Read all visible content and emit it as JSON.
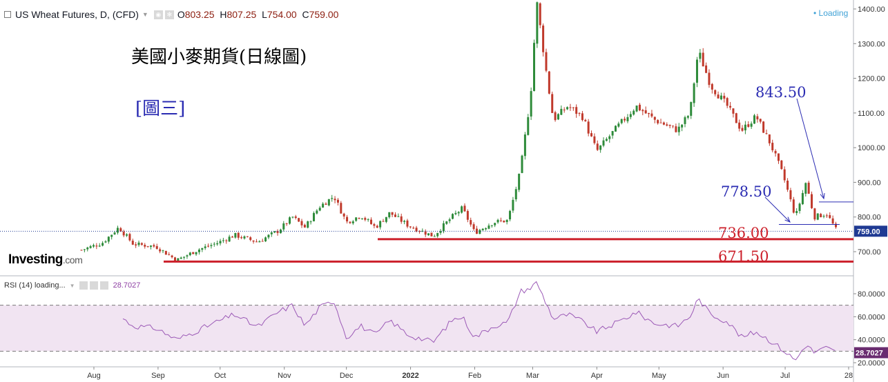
{
  "header": {
    "symbol": "US Wheat Futures, D, (CFD)",
    "open_label": "O",
    "open": "803.25",
    "high_label": "H",
    "high": "807.25",
    "low_label": "L",
    "low": "754.00",
    "close_label": "C",
    "close": "759.00",
    "status": "• Loading"
  },
  "annotations": {
    "title": "美國小麥期貨(日線圖)",
    "figure": "[圖三]",
    "level_843": "843.50",
    "level_778": "778.50",
    "level_736": "736.00",
    "level_671": "671.50"
  },
  "logo": {
    "main": "Investing",
    "suffix": ".com"
  },
  "rsi_header": {
    "label": "RSI (14) loading...",
    "value": "28.7027"
  },
  "price_axis": {
    "ticks": [
      "1400.00",
      "1300.00",
      "1200.00",
      "1100.00",
      "1000.00",
      "900.00",
      "800.00",
      "700.00"
    ],
    "last_price": "759.00"
  },
  "rsi_axis": {
    "ticks": [
      "80.0000",
      "60.0000",
      "40.0000",
      "20.0000"
    ],
    "last_value": "28.7027"
  },
  "time_axis": [
    "Aug",
    "Sep",
    "Oct",
    "Nov",
    "Dec",
    "2022",
    "Feb",
    "Mar",
    "Apr",
    "May",
    "Jun",
    "Jul",
    "28"
  ],
  "colors": {
    "up": "#2e8b3a",
    "down": "#c0392b",
    "support": "#cc1f2a",
    "note_blue": "#2a2bb2",
    "rsi_line": "#9b59b6",
    "rsi_band": "#f1e4f2",
    "last_price_bg": "#1f3a93"
  },
  "chart_data": {
    "type": "candlestick",
    "price_ylim": [
      650,
      1420
    ],
    "rsi_ylim": [
      15,
      92
    ],
    "rsi_bands": [
      30,
      70
    ],
    "support_levels": [
      843.5,
      778.5,
      736.0,
      671.5
    ],
    "last_close": 759.0,
    "keypoints": [
      {
        "x": "2021-07-26",
        "price": 705,
        "rsi": 55
      },
      {
        "x": "2021-08-05",
        "price": 725,
        "rsi": 54
      },
      {
        "x": "2021-08-13",
        "price": 770,
        "rsi": 61
      },
      {
        "x": "2021-08-20",
        "price": 722,
        "rsi": 52
      },
      {
        "x": "2021-08-31",
        "price": 715,
        "rsi": 50
      },
      {
        "x": "2021-09-10",
        "price": 675,
        "rsi": 40
      },
      {
        "x": "2021-09-20",
        "price": 705,
        "rsi": 48
      },
      {
        "x": "2021-09-30",
        "price": 726,
        "rsi": 56
      },
      {
        "x": "2021-10-08",
        "price": 748,
        "rsi": 62
      },
      {
        "x": "2021-10-19",
        "price": 728,
        "rsi": 51
      },
      {
        "x": "2021-10-29",
        "price": 760,
        "rsi": 64
      },
      {
        "x": "2021-11-05",
        "price": 800,
        "rsi": 70
      },
      {
        "x": "2021-11-11",
        "price": 770,
        "rsi": 52
      },
      {
        "x": "2021-11-18",
        "price": 830,
        "rsi": 68
      },
      {
        "x": "2021-11-25",
        "price": 860,
        "rsi": 74
      },
      {
        "x": "2021-12-01",
        "price": 785,
        "rsi": 42
      },
      {
        "x": "2021-12-08",
        "price": 805,
        "rsi": 52
      },
      {
        "x": "2021-12-15",
        "price": 770,
        "rsi": 44
      },
      {
        "x": "2021-12-22",
        "price": 812,
        "rsi": 57
      },
      {
        "x": "2021-12-31",
        "price": 775,
        "rsi": 44
      },
      {
        "x": "2022-01-12",
        "price": 745,
        "rsi": 38
      },
      {
        "x": "2022-01-21",
        "price": 800,
        "rsi": 57
      },
      {
        "x": "2022-01-26",
        "price": 825,
        "rsi": 60
      },
      {
        "x": "2022-02-01",
        "price": 755,
        "rsi": 42
      },
      {
        "x": "2022-02-10",
        "price": 785,
        "rsi": 52
      },
      {
        "x": "2022-02-17",
        "price": 790,
        "rsi": 55
      },
      {
        "x": "2022-02-23",
        "price": 930,
        "rsi": 82
      },
      {
        "x": "2022-02-28",
        "price": 1150,
        "rsi": 85
      },
      {
        "x": "2022-03-03",
        "price": 1420,
        "rsi": 90
      },
      {
        "x": "2022-03-08",
        "price": 1200,
        "rsi": 70
      },
      {
        "x": "2022-03-11",
        "price": 1080,
        "rsi": 58
      },
      {
        "x": "2022-03-18",
        "price": 1120,
        "rsi": 62
      },
      {
        "x": "2022-03-25",
        "price": 1090,
        "rsi": 56
      },
      {
        "x": "2022-04-01",
        "price": 990,
        "rsi": 47
      },
      {
        "x": "2022-04-11",
        "price": 1060,
        "rsi": 55
      },
      {
        "x": "2022-04-20",
        "price": 1120,
        "rsi": 64
      },
      {
        "x": "2022-04-29",
        "price": 1080,
        "rsi": 54
      },
      {
        "x": "2022-05-10",
        "price": 1050,
        "rsi": 52
      },
      {
        "x": "2022-05-16",
        "price": 1100,
        "rsi": 60
      },
      {
        "x": "2022-05-20",
        "price": 1280,
        "rsi": 76
      },
      {
        "x": "2022-05-26",
        "price": 1180,
        "rsi": 62
      },
      {
        "x": "2022-06-03",
        "price": 1120,
        "rsi": 56
      },
      {
        "x": "2022-06-10",
        "price": 1050,
        "rsi": 42
      },
      {
        "x": "2022-06-17",
        "price": 1090,
        "rsi": 47
      },
      {
        "x": "2022-06-24",
        "price": 1010,
        "rsi": 39
      },
      {
        "x": "2022-06-30",
        "price": 920,
        "rsi": 31
      },
      {
        "x": "2022-07-06",
        "price": 800,
        "rsi": 22
      },
      {
        "x": "2022-07-11",
        "price": 900,
        "rsi": 36
      },
      {
        "x": "2022-07-15",
        "price": 800,
        "rsi": 29
      },
      {
        "x": "2022-07-21",
        "price": 810,
        "rsi": 33
      },
      {
        "x": "2022-07-26",
        "price": 759,
        "rsi": 28.7
      }
    ]
  }
}
